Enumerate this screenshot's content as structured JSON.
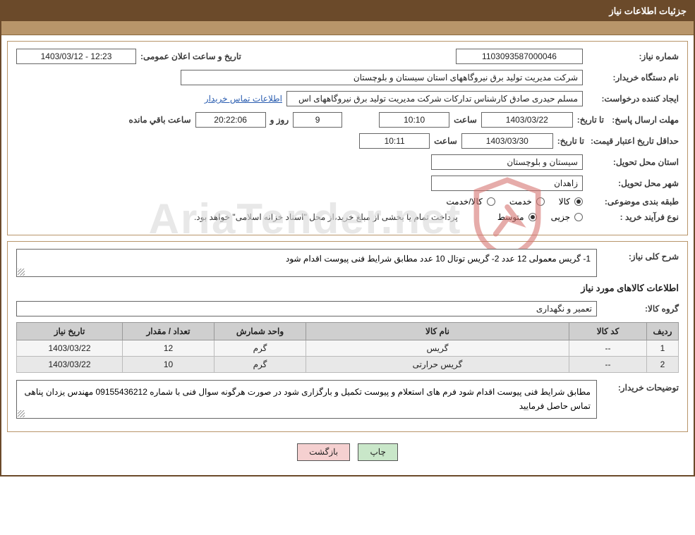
{
  "header": {
    "title": "جزئیات اطلاعات نیاز"
  },
  "watermark": {
    "text": "AriaTender.net",
    "shield_stroke": "#d77672",
    "shield_fill": "none"
  },
  "section1": {
    "need_number_label": "شماره نیاز:",
    "need_number": "1103093587000046",
    "announce_label": "تاریخ و ساعت اعلان عمومی:",
    "announce_value": "12:23 - 1403/03/12",
    "buyer_org_label": "نام دستگاه خریدار:",
    "buyer_org": "شرکت مدیریت تولید برق نیروگاههای استان سیستان و بلوچستان",
    "requester_label": "ایجاد کننده درخواست:",
    "requester": "مسلم حیدری صادق کارشناس تدارکات شرکت مدیریت تولید برق نیروگاههای اس",
    "contact_link": "اطلاعات تماس خریدار",
    "deadline_label": "مهلت ارسال پاسخ:",
    "until_date_label": "تا تاریخ:",
    "deadline_date": "1403/03/22",
    "time_label": "ساعت",
    "deadline_time": "10:10",
    "days": "9",
    "day_and_label": "روز و",
    "countdown": "20:22:06",
    "remaining_label": "ساعت باقي مانده",
    "price_validity_label": "حداقل تاریخ اعتبار قیمت:",
    "price_date": "1403/03/30",
    "price_time": "10:11",
    "delivery_province_label": "استان محل تحویل:",
    "delivery_province": "سیستان و بلوچستان",
    "delivery_city_label": "شهر محل تحویل:",
    "delivery_city": "زاهدان",
    "category_label": "طبقه بندی موضوعی:",
    "cat_goods": "کالا",
    "cat_service": "خدمت",
    "cat_goods_service": "کالا/خدمت",
    "process_label": "نوع فرآیند خرید :",
    "process_partial": "جزیی",
    "process_medium": "متوسط",
    "payment_note": "پرداخت تمام یا بخشی از مبلغ خرید،از محل \"اسناد خزانه اسلامی\" خواهد بود."
  },
  "section2": {
    "need_desc_label": "شرح کلی نیاز:",
    "need_desc": "1- گریس معمولی  12 عدد   2- گریس توتال  10 عدد   مطابق شرایط فنی پیوست اقدام شود",
    "items_title": "اطلاعات کالاهای مورد نیاز",
    "group_label": "گروه کالا:",
    "group_value": "تعمیر و نگهداری",
    "table": {
      "columns": [
        "ردیف",
        "کد کالا",
        "نام کالا",
        "واحد شمارش",
        "تعداد / مقدار",
        "تاریخ نیاز"
      ],
      "rows": [
        [
          "1",
          "--",
          "گریس",
          "گرم",
          "12",
          "1403/03/22"
        ],
        [
          "2",
          "--",
          "گریس حرارتی",
          "گرم",
          "10",
          "1403/03/22"
        ]
      ],
      "col_widths": [
        "45px",
        "110px",
        "auto",
        "130px",
        "130px",
        "150px"
      ]
    },
    "buyer_notes_label": "توضیحات خریدار:",
    "buyer_notes": "مطابق شرایط فنی پیوست اقدام شود فرم های استعلام و پیوست تکمیل و بارگزاری شود در صورت هرگونه سوال فنی با شماره 09155436212 مهندس یزدان پناهی تماس حاصل فرمایید"
  },
  "buttons": {
    "print": "چاپ",
    "back": "بازگشت"
  },
  "colors": {
    "header_bg": "#6b4a2a",
    "accent_bg": "#b8956a",
    "border": "#b8956a",
    "field_border": "#666666",
    "th_bg": "#cfcfcf",
    "row_odd": "#f5f5f5",
    "row_even": "#e8e8e8",
    "btn_print_bg": "#c9e7c9",
    "btn_back_bg": "#f5d0d0",
    "link": "#2a5db0"
  }
}
